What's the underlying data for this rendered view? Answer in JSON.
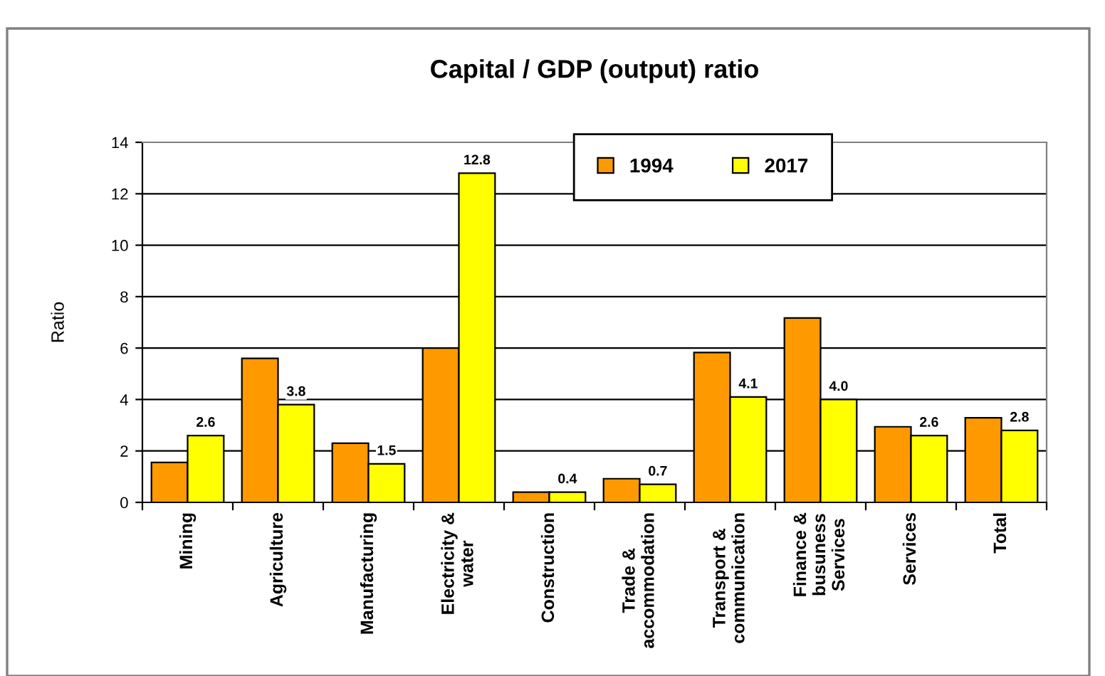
{
  "chart_data": {
    "type": "bar",
    "title": "Capital / GDP (output) ratio",
    "ylabel": "Ratio",
    "categories": [
      "Mining",
      "Agriculture",
      "Manufacturing",
      "Electricity &\nwater",
      "Construction",
      "Trade &\naccommodation",
      "Transport &\ncommunication",
      "Finance &\nbusuness\nServices",
      "Services",
      "Total"
    ],
    "series": [
      {
        "name": "1994",
        "color": "#ff9900",
        "values": [
          1.55,
          5.6,
          2.3,
          6.0,
          0.4,
          0.92,
          5.83,
          7.17,
          2.94,
          3.29
        ]
      },
      {
        "name": "2017",
        "color": "#ffff00",
        "values": [
          2.6,
          3.8,
          1.5,
          12.8,
          0.4,
          0.7,
          4.1,
          4.0,
          2.6,
          2.8
        ],
        "value_labels": [
          "2.6",
          "3.8",
          "1.5",
          "12.8",
          "0.4",
          "0.7",
          "4.1",
          "4.0",
          "2.6",
          "2.8"
        ]
      }
    ],
    "ylim": [
      0,
      14
    ],
    "yticks": [
      0,
      2,
      4,
      6,
      8,
      10,
      12,
      14
    ],
    "grid": "y",
    "legend": "top"
  }
}
